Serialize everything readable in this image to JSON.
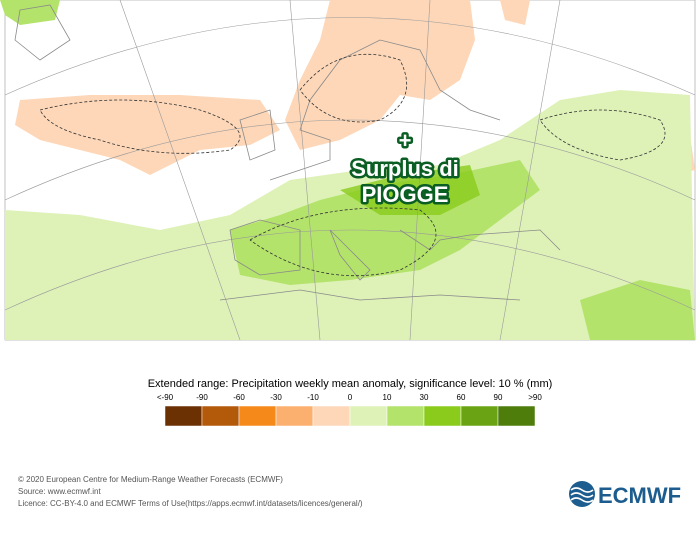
{
  "map": {
    "annotation": {
      "symbol": "+",
      "lines": [
        "Surplus di",
        "PIOGGE"
      ]
    }
  },
  "legend": {
    "title": "Extended range: Precipitation weekly mean anomaly, significance level: 10 % (mm)",
    "labels": [
      "<-90",
      "-90",
      "-60",
      "-30",
      "-10",
      "0",
      "10",
      "30",
      "60",
      "90",
      ">90"
    ],
    "colors": [
      "#6b3103",
      "#b3590a",
      "#f58a1a",
      "#fcb070",
      "#fdd7b8",
      "#def2b8",
      "#b4e36c",
      "#8acb1c",
      "#6aa414",
      "#4e7d0c"
    ]
  },
  "footer": {
    "copyright": "© 2020 European Centre for Medium-Range Weather Forecasts (ECMWF)",
    "source": "Source: www.ecmwf.int",
    "licence": "Licence: CC-BY-4.0 and ECMWF Terms of Use(https://apps.ecmwf.int/datasets/licences/general/)"
  },
  "logo": {
    "text": "ECMWF"
  }
}
